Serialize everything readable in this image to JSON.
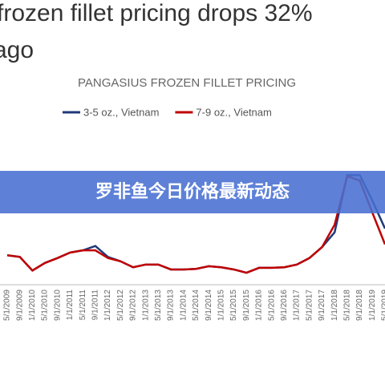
{
  "headline": {
    "line1": "frozen fillet pricing drops 32%",
    "line2": "ago"
  },
  "banner": "罗非鱼今日价格最新动态",
  "chart_data": {
    "type": "line",
    "title": "PANGASIUS FROZEN FILLET PRICING",
    "categories": [
      "5/1/2009",
      "9/1/2009",
      "1/1/2010",
      "5/1/2010",
      "9/1/2010",
      "1/1/2011",
      "5/1/2011",
      "9/1/2011",
      "1/1/2012",
      "5/1/2012",
      "9/1/2012",
      "1/1/2013",
      "5/1/2013",
      "9/1/2013",
      "1/1/2014",
      "5/1/2014",
      "9/1/2014",
      "1/1/2015",
      "5/1/2015",
      "9/1/2015",
      "1/1/2016",
      "5/1/2016",
      "9/1/2016",
      "1/1/2017",
      "5/1/2017",
      "9/1/2017",
      "1/1/2018",
      "5/1/2018",
      "9/1/2018",
      "1/1/2019",
      "5/1/2019"
    ],
    "series": [
      {
        "name": "3-5 oz., Vietnam",
        "color": "#1f3a7a",
        "values": [
          2.04,
          2.01,
          1.76,
          1.9,
          1.99,
          2.09,
          2.13,
          2.21,
          2.01,
          1.93,
          1.82,
          1.87,
          1.87,
          1.78,
          1.78,
          1.79,
          1.84,
          1.82,
          1.78,
          1.72,
          1.81,
          1.81,
          1.82,
          1.87,
          1.99,
          2.19,
          2.46,
          3.51,
          3.51,
          3.04,
          2.53
        ]
      },
      {
        "name": "7-9 oz., Vietnam",
        "color": "#c00000",
        "values": [
          2.04,
          2.01,
          1.76,
          1.9,
          1.99,
          2.09,
          2.13,
          2.13,
          1.99,
          1.93,
          1.82,
          1.87,
          1.87,
          1.78,
          1.78,
          1.79,
          1.84,
          1.82,
          1.78,
          1.72,
          1.81,
          1.81,
          1.82,
          1.87,
          1.99,
          2.19,
          2.6,
          3.49,
          3.41,
          2.82,
          2.24
        ]
      }
    ],
    "ylim": [
      1.5,
      4.0
    ],
    "legend": "top"
  }
}
